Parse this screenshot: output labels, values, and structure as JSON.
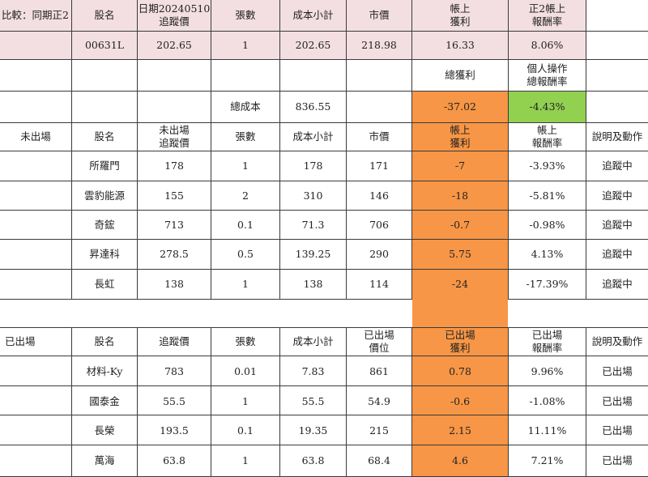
{
  "header": {
    "comparison": "比較：同期正2",
    "stock_name": "股名",
    "tracking_price": [
      "日期20240510",
      "追蹤價"
    ],
    "sheets": "張數",
    "cost_subtotal": "成本小計",
    "market_price": "市價",
    "book_profit": [
      "帳上",
      "獲利"
    ],
    "book_return": [
      "正2帳上",
      "報酬率"
    ]
  },
  "benchmark": {
    "name": "00631L",
    "tracking_price": "202.65",
    "sheets": "1",
    "cost_subtotal": "202.65",
    "market_price": "218.98",
    "book_profit": "16.33",
    "book_return": "8.06%"
  },
  "summary": {
    "total_profit_label": "總獲利",
    "personal_return_label": [
      "個人操作",
      "總報酬率"
    ],
    "total_cost_label": "總成本",
    "total_cost": "836.55",
    "total_profit": "-37.02",
    "personal_return": "-4.43%"
  },
  "open_section": {
    "label": "未出場",
    "headers": {
      "name": "股名",
      "price": [
        "未出場",
        "追蹤價"
      ],
      "sheets": "張數",
      "cost": "成本小計",
      "market": "市價",
      "profit": [
        "帳上",
        "獲利"
      ],
      "return": [
        "帳上",
        "報酬率"
      ],
      "note": "說明及動作"
    },
    "rows": [
      {
        "name": "所羅門",
        "price": "178",
        "sheets": "1",
        "cost": "178",
        "market": "171",
        "profit": "-7",
        "return": "-3.93%",
        "note": "追蹤中"
      },
      {
        "name": "雲豹能源",
        "price": "155",
        "sheets": "2",
        "cost": "310",
        "market": "146",
        "profit": "-18",
        "return": "-5.81%",
        "note": "追蹤中"
      },
      {
        "name": "奇鋐",
        "price": "713",
        "sheets": "0.1",
        "cost": "71.3",
        "market": "706",
        "profit": "-0.7",
        "return": "-0.98%",
        "note": "追蹤中"
      },
      {
        "name": "昇達科",
        "price": "278.5",
        "sheets": "0.5",
        "cost": "139.25",
        "market": "290",
        "profit": "5.75",
        "return": "4.13%",
        "note": "追蹤中"
      },
      {
        "name": "長虹",
        "price": "138",
        "sheets": "1",
        "cost": "138",
        "market": "114",
        "profit": "-24",
        "return": "-17.39%",
        "note": "追蹤中"
      }
    ]
  },
  "closed_section": {
    "label": "已出場",
    "headers": {
      "name": "股名",
      "price": "追蹤價",
      "sheets": "張數",
      "cost": "成本小計",
      "market": [
        "已出場",
        "價位"
      ],
      "profit": [
        "已出場",
        "獲利"
      ],
      "return": [
        "已出場",
        "報酬率"
      ],
      "note": "說明及動作"
    },
    "rows": [
      {
        "name": "材料-Ky",
        "price": "783",
        "sheets": "0.01",
        "cost": "7.83",
        "market": "861",
        "profit": "0.78",
        "return": "9.96%",
        "note": "已出場"
      },
      {
        "name": "國泰金",
        "price": "55.5",
        "sheets": "1",
        "cost": "55.5",
        "market": "54.9",
        "profit": "-0.6",
        "return": "-1.08%",
        "note": "已出場"
      },
      {
        "name": "長榮",
        "price": "193.5",
        "sheets": "0.1",
        "cost": "19.35",
        "market": "215",
        "profit": "2.15",
        "return": "11.11%",
        "note": "已出場"
      },
      {
        "name": "萬海",
        "price": "63.8",
        "sheets": "1",
        "cost": "63.8",
        "market": "68.4",
        "profit": "4.6",
        "return": "7.21%",
        "note": "已出場"
      }
    ]
  },
  "colors": {
    "header_fill": "#f3dfe2",
    "profit_fill": "#f79646",
    "return_fill": "#92d050",
    "grid": "#3a3a3a"
  }
}
